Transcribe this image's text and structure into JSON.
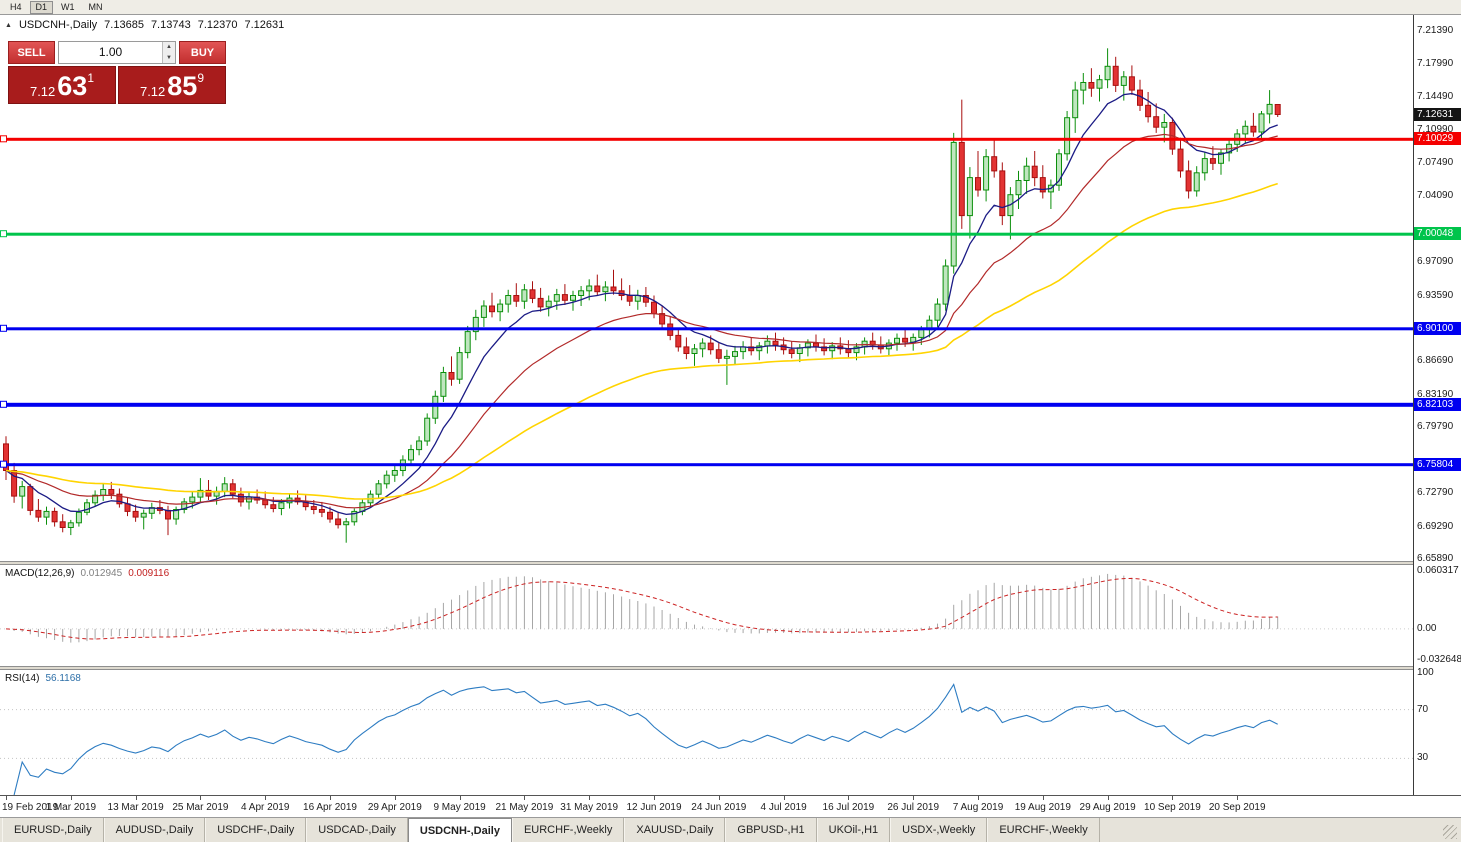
{
  "toolbar": {
    "timeframes": [
      {
        "label": "H4",
        "active": false
      },
      {
        "label": "D1",
        "active": true
      },
      {
        "label": "W1",
        "active": false
      },
      {
        "label": "MN",
        "active": false
      }
    ]
  },
  "symbol_header": {
    "collapse_icon": "▲",
    "title": "USDCNH-,Daily",
    "open": "7.13685",
    "high": "7.13743",
    "low": "7.12370",
    "close": "7.12631"
  },
  "trade_widget": {
    "sell_label": "SELL",
    "buy_label": "BUY",
    "volume": "1.00",
    "sell_price": {
      "prefix": "7.12",
      "big": "63",
      "sup": "1"
    },
    "buy_price": {
      "prefix": "7.12",
      "big": "85",
      "sup": "9"
    }
  },
  "colors": {
    "bull_fill": "#bfe6bf",
    "bull_stroke": "#0b8f0b",
    "bear_fill": "#e23333",
    "bear_stroke": "#a80f0f",
    "macd_hist": "#a6a6a6",
    "macd_signal": "#cc2222",
    "rsi_line": "#2d7cc2",
    "badge_current": "#141414"
  },
  "hlines": [
    {
      "label": "7.10029",
      "value": 7.10029,
      "color": "#f40000",
      "thickness": 3
    },
    {
      "label": "7.00048",
      "value": 7.00048,
      "color": "#00c44b",
      "thickness": 3
    },
    {
      "label": "6.90100",
      "value": 6.901,
      "color": "#0000f0",
      "thickness": 3
    },
    {
      "label": "6.82103",
      "value": 6.82103,
      "color": "#0000f0",
      "thickness": 4
    },
    {
      "label": "6.75804",
      "value": 6.75804,
      "color": "#0000f0",
      "thickness": 3
    }
  ],
  "price_axis": {
    "current_badge": {
      "label": "7.12631",
      "value": 7.12631,
      "color": "#141414"
    },
    "ticks": [
      {
        "label": "7.21390",
        "value": 7.2139
      },
      {
        "label": "7.17990",
        "value": 7.1799
      },
      {
        "label": "7.14490",
        "value": 7.1449
      },
      {
        "label": "7.10990",
        "value": 7.1099
      },
      {
        "label": "7.07490",
        "value": 7.0749
      },
      {
        "label": "7.04090",
        "value": 7.0409
      },
      {
        "label": "6.97090",
        "value": 6.9709
      },
      {
        "label": "6.93590",
        "value": 6.9359
      },
      {
        "label": "6.86690",
        "value": 6.8669
      },
      {
        "label": "6.83190",
        "value": 6.8319
      },
      {
        "label": "6.79790",
        "value": 6.7979
      },
      {
        "label": "6.72790",
        "value": 6.7279
      },
      {
        "label": "6.69290",
        "value": 6.6929
      },
      {
        "label": "6.65890",
        "value": 6.6589
      }
    ]
  },
  "macd_panel": {
    "label": "MACD(12,26,9)",
    "value_main": "0.012945",
    "value_signal": "0.009116",
    "scale_max": 0.0662,
    "scale_min": -0.0385,
    "axis": [
      {
        "label": "0.060317",
        "value": 0.060317
      },
      {
        "label": "0.00",
        "value": 0
      },
      {
        "label": "-0.032648",
        "value": -0.032648
      }
    ]
  },
  "rsi_panel": {
    "label": "RSI(14)",
    "value": "56.1168",
    "levels": [
      70,
      30
    ],
    "axis": [
      {
        "label": "100",
        "value": 100
      },
      {
        "label": "70",
        "value": 70
      },
      {
        "label": "30",
        "value": 30
      }
    ]
  },
  "tabs": [
    {
      "label": "EURUSD-,Daily",
      "active": false
    },
    {
      "label": "AUDUSD-,Daily",
      "active": false
    },
    {
      "label": "USDCHF-,Daily",
      "active": false
    },
    {
      "label": "USDCAD-,Daily",
      "active": false
    },
    {
      "label": "USDCNH-,Daily",
      "active": true
    },
    {
      "label": "EURCHF-,Weekly",
      "active": false
    },
    {
      "label": "XAUUSD-,Daily",
      "active": false
    },
    {
      "label": "GBPUSD-,H1",
      "active": false
    },
    {
      "label": "UKOil-,H1",
      "active": false
    },
    {
      "label": "USDX-,Weekly",
      "active": false
    },
    {
      "label": "EURCHF-,Weekly",
      "active": false
    }
  ],
  "chart_data": {
    "type": "candlestick",
    "symbol": "USDCNH-",
    "timeframe": "Daily",
    "y_range": [
      6.6568,
      7.231
    ],
    "indicators": {
      "macd": [
        12,
        26,
        9
      ],
      "rsi": 14
    },
    "ema_overlays": [
      {
        "period": 8,
        "color": "#1b1b85",
        "width": 1.3
      },
      {
        "period": 21,
        "color": "#b22a2a",
        "width": 1.2
      },
      {
        "period": 55,
        "color": "#ffd400",
        "width": 1.6
      }
    ],
    "x_ticks": [
      {
        "index": 0,
        "label": "19 Feb 2019"
      },
      {
        "index": 8,
        "label": "1 Mar 2019"
      },
      {
        "index": 16,
        "label": "13 Mar 2019"
      },
      {
        "index": 24,
        "label": "25 Mar 2019"
      },
      {
        "index": 32,
        "label": "4 Apr 2019"
      },
      {
        "index": 40,
        "label": "16 Apr 2019"
      },
      {
        "index": 48,
        "label": "29 Apr 2019"
      },
      {
        "index": 56,
        "label": "9 May 2019"
      },
      {
        "index": 64,
        "label": "21 May 2019"
      },
      {
        "index": 72,
        "label": "31 May 2019"
      },
      {
        "index": 80,
        "label": "12 Jun 2019"
      },
      {
        "index": 88,
        "label": "24 Jun 2019"
      },
      {
        "index": 96,
        "label": "4 Jul 2019"
      },
      {
        "index": 104,
        "label": "16 Jul 2019"
      },
      {
        "index": 112,
        "label": "26 Jul 2019"
      },
      {
        "index": 120,
        "label": "7 Aug 2019"
      },
      {
        "index": 128,
        "label": "19 Aug 2019"
      },
      {
        "index": 136,
        "label": "29 Aug 2019"
      },
      {
        "index": 144,
        "label": "10 Sep 2019"
      },
      {
        "index": 152,
        "label": "20 Sep 2019"
      }
    ],
    "candles": [
      [
        6.78,
        6.788,
        6.742,
        6.752
      ],
      [
        6.752,
        6.76,
        6.718,
        6.725
      ],
      [
        6.725,
        6.741,
        6.712,
        6.735
      ],
      [
        6.735,
        6.738,
        6.705,
        6.71
      ],
      [
        6.71,
        6.722,
        6.698,
        6.703
      ],
      [
        6.703,
        6.714,
        6.695,
        6.709
      ],
      [
        6.709,
        6.713,
        6.693,
        6.698
      ],
      [
        6.698,
        6.706,
        6.687,
        6.692
      ],
      [
        6.692,
        6.7,
        6.684,
        6.697
      ],
      [
        6.697,
        6.712,
        6.693,
        6.708
      ],
      [
        6.708,
        6.722,
        6.705,
        6.718
      ],
      [
        6.718,
        6.731,
        6.714,
        6.726
      ],
      [
        6.726,
        6.738,
        6.72,
        6.732
      ],
      [
        6.732,
        6.74,
        6.722,
        6.727
      ],
      [
        6.727,
        6.733,
        6.713,
        6.717
      ],
      [
        6.717,
        6.724,
        6.704,
        6.709
      ],
      [
        6.709,
        6.716,
        6.698,
        6.703
      ],
      [
        6.703,
        6.711,
        6.69,
        6.707
      ],
      [
        6.707,
        6.718,
        6.701,
        6.713
      ],
      [
        6.713,
        6.721,
        6.706,
        6.71
      ],
      [
        6.71,
        6.715,
        6.684,
        6.701
      ],
      [
        6.701,
        6.714,
        6.695,
        6.711
      ],
      [
        6.711,
        6.723,
        6.707,
        6.719
      ],
      [
        6.719,
        6.73,
        6.712,
        6.724
      ],
      [
        6.724,
        6.744,
        6.718,
        6.731
      ],
      [
        6.731,
        6.742,
        6.721,
        6.725
      ],
      [
        6.725,
        6.735,
        6.716,
        6.73
      ],
      [
        6.73,
        6.745,
        6.724,
        6.738
      ],
      [
        6.738,
        6.743,
        6.723,
        6.727
      ],
      [
        6.727,
        6.734,
        6.714,
        6.719
      ],
      [
        6.719,
        6.729,
        6.711,
        6.724
      ],
      [
        6.724,
        6.732,
        6.717,
        6.721
      ],
      [
        6.721,
        6.73,
        6.712,
        6.716
      ],
      [
        6.716,
        6.724,
        6.708,
        6.712
      ],
      [
        6.712,
        6.722,
        6.705,
        6.718
      ],
      [
        6.718,
        6.727,
        6.712,
        6.723
      ],
      [
        6.723,
        6.731,
        6.716,
        6.719
      ],
      [
        6.719,
        6.726,
        6.71,
        6.714
      ],
      [
        6.714,
        6.721,
        6.706,
        6.711
      ],
      [
        6.711,
        6.719,
        6.703,
        6.708
      ],
      [
        6.708,
        6.714,
        6.697,
        6.701
      ],
      [
        6.701,
        6.708,
        6.691,
        6.695
      ],
      [
        6.695,
        6.702,
        6.676,
        6.698
      ],
      [
        6.698,
        6.712,
        6.694,
        6.709
      ],
      [
        6.709,
        6.722,
        6.705,
        6.718
      ],
      [
        6.718,
        6.731,
        6.713,
        6.727
      ],
      [
        6.727,
        6.742,
        6.722,
        6.738
      ],
      [
        6.738,
        6.752,
        6.733,
        6.747
      ],
      [
        6.747,
        6.758,
        6.74,
        6.752
      ],
      [
        6.752,
        6.768,
        6.746,
        6.763
      ],
      [
        6.763,
        6.779,
        6.757,
        6.774
      ],
      [
        6.774,
        6.788,
        6.768,
        6.783
      ],
      [
        6.783,
        6.812,
        6.778,
        6.807
      ],
      [
        6.807,
        6.836,
        6.801,
        6.83
      ],
      [
        6.83,
        6.861,
        6.824,
        6.855
      ],
      [
        6.855,
        6.872,
        6.841,
        6.848
      ],
      [
        6.848,
        6.882,
        6.843,
        6.876
      ],
      [
        6.876,
        6.904,
        6.87,
        6.898
      ],
      [
        6.898,
        6.921,
        6.889,
        6.913
      ],
      [
        6.913,
        6.931,
        6.903,
        6.925
      ],
      [
        6.925,
        6.939,
        6.913,
        6.919
      ],
      [
        6.919,
        6.932,
        6.909,
        6.927
      ],
      [
        6.927,
        6.942,
        6.918,
        6.936
      ],
      [
        6.936,
        6.949,
        6.924,
        6.93
      ],
      [
        6.93,
        6.948,
        6.922,
        6.942
      ],
      [
        6.942,
        6.951,
        6.928,
        6.933
      ],
      [
        6.933,
        6.944,
        6.919,
        6.924
      ],
      [
        6.924,
        6.936,
        6.914,
        6.93
      ],
      [
        6.93,
        6.943,
        6.921,
        6.937
      ],
      [
        6.937,
        6.948,
        6.926,
        6.931
      ],
      [
        6.931,
        6.941,
        6.92,
        6.936
      ],
      [
        6.936,
        6.946,
        6.925,
        6.941
      ],
      [
        6.941,
        6.953,
        6.931,
        6.946
      ],
      [
        6.946,
        6.958,
        6.936,
        6.94
      ],
      [
        6.94,
        6.951,
        6.93,
        6.945
      ],
      [
        6.945,
        6.963,
        6.937,
        6.941
      ],
      [
        6.941,
        6.954,
        6.931,
        6.936
      ],
      [
        6.936,
        6.947,
        6.925,
        6.93
      ],
      [
        6.93,
        6.942,
        6.921,
        6.936
      ],
      [
        6.936,
        6.945,
        6.924,
        6.929
      ],
      [
        6.929,
        6.936,
        6.912,
        6.917
      ],
      [
        6.917,
        6.925,
        6.901,
        6.906
      ],
      [
        6.906,
        6.914,
        6.889,
        6.894
      ],
      [
        6.894,
        6.902,
        6.877,
        6.882
      ],
      [
        6.882,
        6.892,
        6.869,
        6.875
      ],
      [
        6.875,
        6.885,
        6.862,
        6.88
      ],
      [
        6.88,
        6.891,
        6.871,
        6.886
      ],
      [
        6.886,
        6.894,
        6.874,
        6.879
      ],
      [
        6.879,
        6.886,
        6.865,
        6.87
      ],
      [
        6.87,
        6.879,
        6.842,
        6.872
      ],
      [
        6.872,
        6.883,
        6.864,
        6.877
      ],
      [
        6.877,
        6.888,
        6.869,
        6.882
      ],
      [
        6.882,
        6.892,
        6.873,
        6.878
      ],
      [
        6.878,
        6.887,
        6.868,
        6.883
      ],
      [
        6.883,
        6.894,
        6.875,
        6.888
      ],
      [
        6.888,
        6.897,
        6.878,
        6.884
      ],
      [
        6.884,
        6.892,
        6.874,
        6.879
      ],
      [
        6.879,
        6.888,
        6.87,
        6.875
      ],
      [
        6.875,
        6.885,
        6.866,
        6.881
      ],
      [
        6.881,
        6.89,
        6.872,
        6.886
      ],
      [
        6.886,
        6.895,
        6.877,
        6.882
      ],
      [
        6.882,
        6.891,
        6.873,
        6.878
      ],
      [
        6.878,
        6.887,
        6.869,
        6.883
      ],
      [
        6.883,
        6.892,
        6.874,
        6.88
      ],
      [
        6.88,
        6.889,
        6.871,
        6.876
      ],
      [
        6.876,
        6.886,
        6.868,
        6.882
      ],
      [
        6.882,
        6.892,
        6.874,
        6.888
      ],
      [
        6.888,
        6.897,
        6.879,
        6.884
      ],
      [
        6.884,
        6.893,
        6.875,
        6.88
      ],
      [
        6.88,
        6.89,
        6.872,
        6.886
      ],
      [
        6.886,
        6.896,
        6.878,
        6.891
      ],
      [
        6.891,
        6.9,
        6.882,
        6.887
      ],
      [
        6.887,
        6.896,
        6.878,
        6.892
      ],
      [
        6.892,
        6.904,
        6.884,
        6.9
      ],
      [
        6.9,
        6.915,
        6.892,
        6.91
      ],
      [
        6.91,
        6.933,
        6.903,
        6.927
      ],
      [
        6.927,
        6.974,
        6.92,
        6.967
      ],
      [
        6.967,
        7.107,
        6.959,
        7.097
      ],
      [
        7.097,
        7.142,
        7.006,
        7.02
      ],
      [
        7.02,
        7.071,
        6.996,
        7.06
      ],
      [
        7.06,
        7.088,
        7.04,
        7.047
      ],
      [
        7.047,
        7.09,
        7.035,
        7.082
      ],
      [
        7.082,
        7.101,
        7.06,
        7.067
      ],
      [
        7.067,
        7.076,
        7.01,
        7.02
      ],
      [
        7.02,
        7.05,
        6.995,
        7.042
      ],
      [
        7.042,
        7.067,
        7.027,
        7.057
      ],
      [
        7.057,
        7.081,
        7.043,
        7.072
      ],
      [
        7.072,
        7.088,
        7.051,
        7.06
      ],
      [
        7.06,
        7.073,
        7.038,
        7.045
      ],
      [
        7.045,
        7.058,
        7.027,
        7.052
      ],
      [
        7.052,
        7.09,
        7.046,
        7.085
      ],
      [
        7.085,
        7.13,
        7.078,
        7.123
      ],
      [
        7.123,
        7.161,
        7.107,
        7.152
      ],
      [
        7.152,
        7.17,
        7.137,
        7.16
      ],
      [
        7.16,
        7.175,
        7.145,
        7.154
      ],
      [
        7.154,
        7.168,
        7.14,
        7.163
      ],
      [
        7.163,
        7.196,
        7.154,
        7.177
      ],
      [
        7.177,
        7.187,
        7.15,
        7.157
      ],
      [
        7.157,
        7.172,
        7.141,
        7.166
      ],
      [
        7.166,
        7.178,
        7.147,
        7.152
      ],
      [
        7.152,
        7.163,
        7.13,
        7.136
      ],
      [
        7.136,
        7.15,
        7.118,
        7.124
      ],
      [
        7.124,
        7.138,
        7.107,
        7.113
      ],
      [
        7.113,
        7.127,
        7.097,
        7.118
      ],
      [
        7.118,
        7.123,
        7.084,
        7.09
      ],
      [
        7.09,
        7.102,
        7.06,
        7.067
      ],
      [
        7.067,
        7.078,
        7.038,
        7.046
      ],
      [
        7.046,
        7.072,
        7.04,
        7.065
      ],
      [
        7.065,
        7.087,
        7.057,
        7.08
      ],
      [
        7.08,
        7.093,
        7.068,
        7.075
      ],
      [
        7.075,
        7.09,
        7.063,
        7.086
      ],
      [
        7.086,
        7.1,
        7.077,
        7.095
      ],
      [
        7.095,
        7.111,
        7.087,
        7.106
      ],
      [
        7.106,
        7.12,
        7.096,
        7.114
      ],
      [
        7.114,
        7.128,
        7.103,
        7.108
      ],
      [
        7.108,
        7.13,
        7.101,
        7.127
      ],
      [
        7.127,
        7.152,
        7.117,
        7.137
      ],
      [
        7.13685,
        7.13743,
        7.1237,
        7.12631
      ]
    ]
  }
}
